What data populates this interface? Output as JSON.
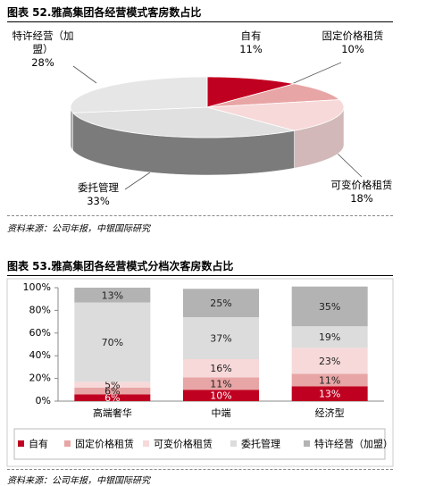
{
  "chart_data": [
    {
      "type": "pie3d",
      "title": "图表 52.雅高集团各经营模式客房数占比",
      "categories": [
        "自有",
        "固定价格租赁",
        "可变价格租赁",
        "委托管理",
        "特许经营（加盟）"
      ],
      "values": [
        11,
        10,
        18,
        33,
        28
      ],
      "value_labels": [
        "11%",
        "10%",
        "18%",
        "33%",
        "28%"
      ],
      "colors": [
        "#c00020",
        "#e8a5a5",
        "#f7d9d9",
        "#e0e0e0",
        "#e6e6e6"
      ],
      "source": "资料来源：公司年报，中银国际研究"
    },
    {
      "type": "stacked_bar",
      "title": "图表 53.雅高集团各经营模式分档次客房数占比",
      "categories": [
        "高端奢华",
        "中端",
        "经济型"
      ],
      "series": [
        {
          "name": "自有",
          "color": "#c00020",
          "values": [
            6,
            10,
            13
          ],
          "value_labels": [
            "6%",
            "10%",
            "13%"
          ]
        },
        {
          "name": "固定价格租赁",
          "color": "#e8a5a5",
          "values": [
            6,
            11,
            11
          ],
          "value_labels": [
            "6%",
            "11%",
            "11%"
          ]
        },
        {
          "name": "可变价格租赁",
          "color": "#f7d9d9",
          "values": [
            5,
            16,
            23
          ],
          "value_labels": [
            "5%",
            "16%",
            "23%"
          ]
        },
        {
          "name": "委托管理",
          "color": "#dcdcdc",
          "values": [
            70,
            37,
            19
          ],
          "value_labels": [
            "70%",
            "37%",
            "19%"
          ]
        },
        {
          "name": "特许经营（加盟）",
          "color": "#b3b3b3",
          "values": [
            13,
            25,
            35
          ],
          "value_labels": [
            "13%",
            "25%",
            "35%"
          ]
        }
      ],
      "ylim": [
        0,
        100
      ],
      "yticks": [
        {
          "value": 0,
          "label": "0%"
        },
        {
          "value": 20,
          "label": "20%"
        },
        {
          "value": 40,
          "label": "40%"
        },
        {
          "value": 60,
          "label": "60%"
        },
        {
          "value": 80,
          "label": "80%"
        },
        {
          "value": 100,
          "label": "100%"
        }
      ],
      "source": "资料来源：公司年报，中银国际研究"
    }
  ]
}
